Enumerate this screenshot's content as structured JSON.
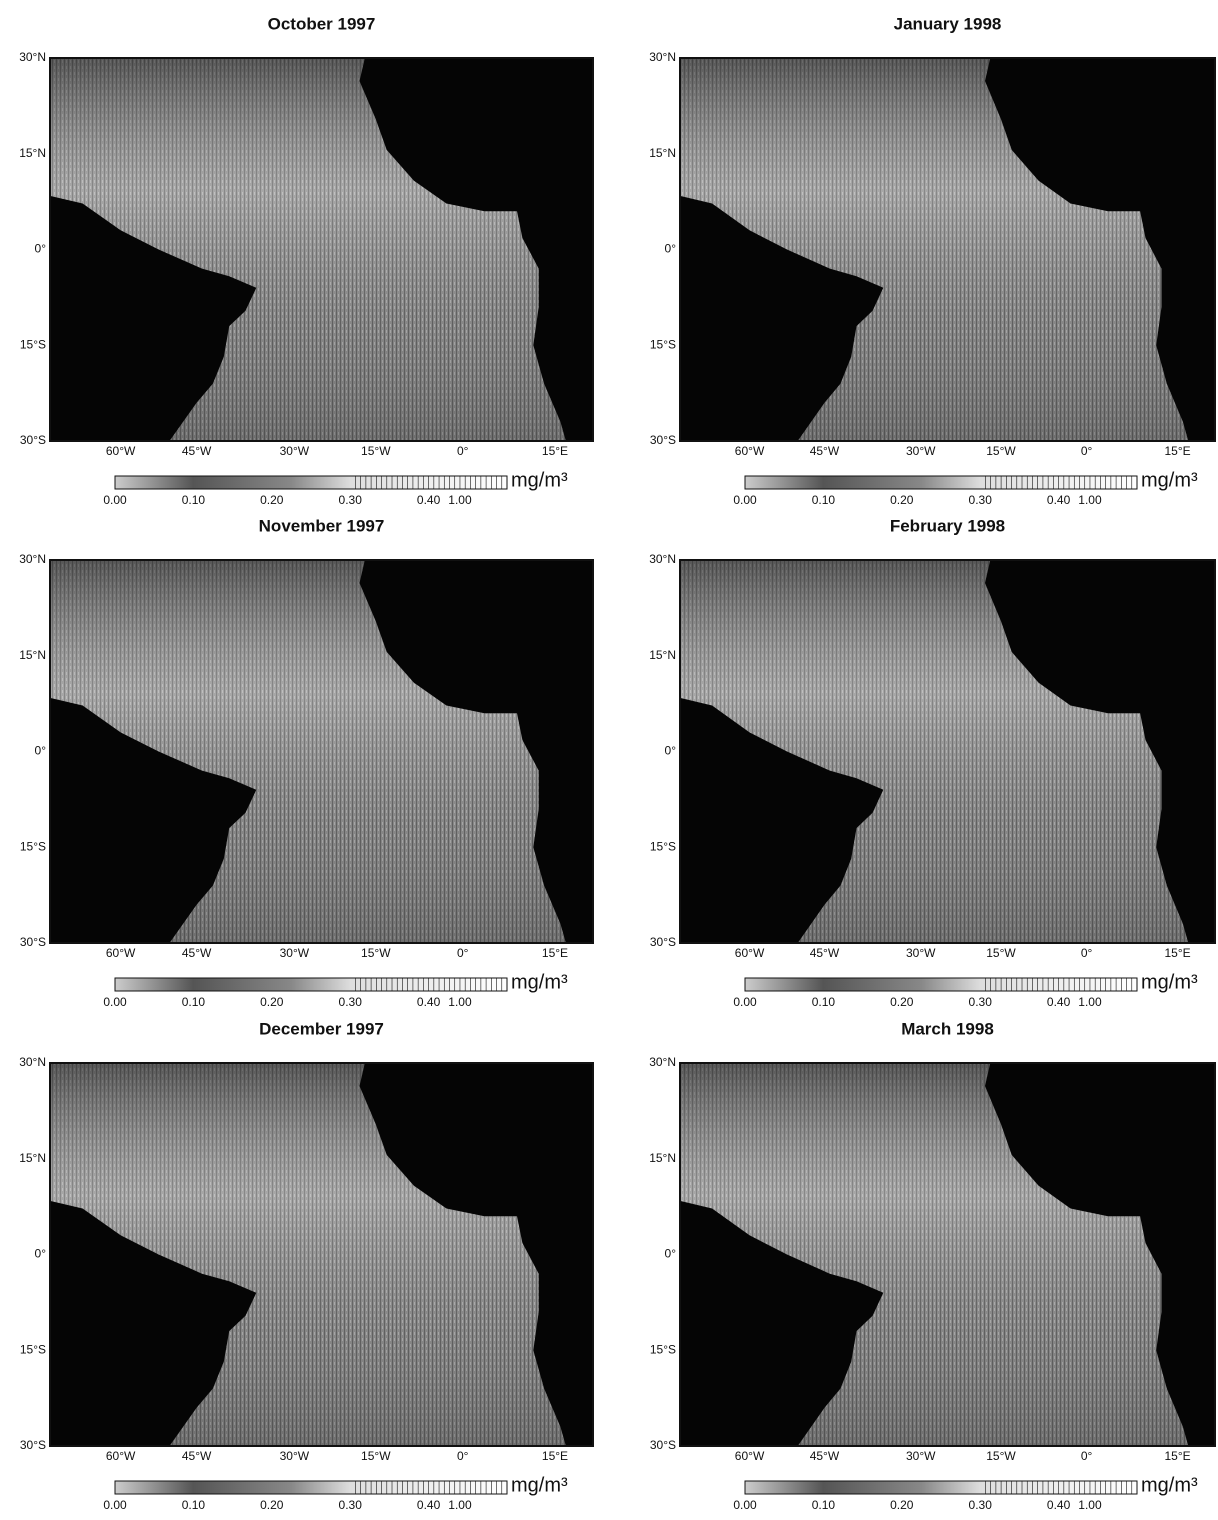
{
  "panels": [
    {
      "title": "October 1997"
    },
    {
      "title": "November 1997"
    },
    {
      "title": "December 1997"
    },
    {
      "title": "January 1998"
    },
    {
      "title": "February 1998"
    },
    {
      "title": "March 1998"
    }
  ],
  "lat_labels": [
    "30°N",
    "15°N",
    "0°",
    "15°S",
    "30°S"
  ],
  "lon_labels": [
    "60°W",
    "45°W",
    "30°W",
    "15°W",
    "0°",
    "15°E"
  ],
  "colorbar": {
    "tick_labels": [
      "0.00",
      "0.10",
      "0.20",
      "0.30",
      "0.40",
      "1.00"
    ],
    "unit": "mg/m³"
  }
}
